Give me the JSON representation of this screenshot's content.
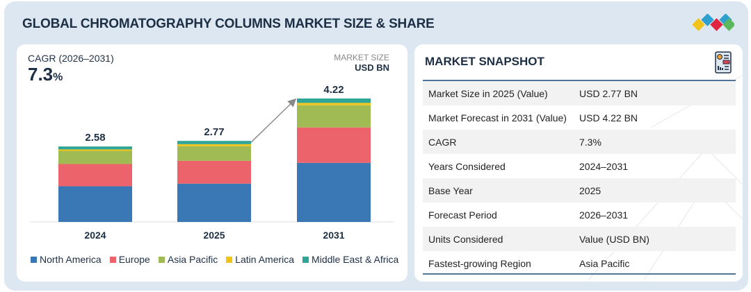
{
  "page": {
    "title": "GLOBAL CHROMATOGRAPHY COLUMNS MARKET SIZE & SHARE"
  },
  "left_panel": {
    "cagr_label": "CAGR (2026–2031)",
    "cagr_value": "7.3",
    "cagr_pct": "%",
    "market_size_label": "MARKET SIZE",
    "market_size_unit": "USD BN"
  },
  "chart_data": {
    "type": "bar",
    "stacked": true,
    "title": "",
    "xlabel": "",
    "ylabel": "Market Size (USD BN)",
    "categories": [
      "2024",
      "2025",
      "2031"
    ],
    "totals": [
      2.58,
      2.77,
      4.22
    ],
    "total_labels": [
      "2.58",
      "2.77",
      "4.22"
    ],
    "series": [
      {
        "name": "North America",
        "color": "#3a78b5",
        "values": [
          1.22,
          1.31,
          2.02
        ]
      },
      {
        "name": "Europe",
        "color": "#ec636c",
        "values": [
          0.76,
          0.78,
          1.21
        ]
      },
      {
        "name": "Asia Pacific",
        "color": "#a0bb53",
        "values": [
          0.45,
          0.5,
          0.76
        ]
      },
      {
        "name": "Latin America",
        "color": "#f0c419",
        "values": [
          0.05,
          0.07,
          0.08
        ]
      },
      {
        "name": "Middle East & Africa",
        "color": "#2fa598",
        "values": [
          0.1,
          0.11,
          0.15
        ]
      }
    ],
    "annotation": "growth arrow from 2025 to 2031",
    "legend_position": "bottom",
    "grid": false
  },
  "snapshot": {
    "title": "MARKET SNAPSHOT",
    "icon": "report-icon",
    "rows": [
      {
        "label": "Market Size in 2025 (Value)",
        "value": "USD 2.77 BN"
      },
      {
        "label": "Market Forecast in 2031 (Value)",
        "value": "USD 4.22 BN"
      },
      {
        "label": "CAGR",
        "value": "7.3%"
      },
      {
        "label": "Years Considered",
        "value": "2024–2031"
      },
      {
        "label": "Base Year",
        "value": "2025"
      },
      {
        "label": "Forecast Period",
        "value": "2026–2031"
      },
      {
        "label": "Units Considered",
        "value": "Value (USD BN)"
      },
      {
        "label": "Fastest-growing Region",
        "value": "Asia Pacific"
      }
    ]
  },
  "logo": {
    "icon": "brand-diamonds-icon",
    "colors": [
      "#f0c419",
      "#2f9fd0",
      "#e0243f",
      "#5cb85c"
    ]
  }
}
